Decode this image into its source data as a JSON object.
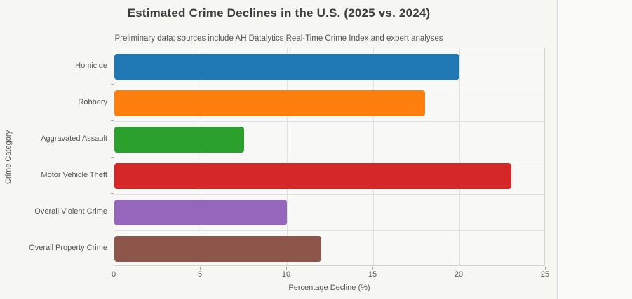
{
  "page": {
    "background": "#fbfbfa",
    "card_background": "#f6f6f3",
    "card_border_color": "#d9d9d9",
    "grid_color": "#e0e0dd",
    "text_color": "#555555",
    "title_color": "#3d3d3d"
  },
  "chart_data": {
    "type": "bar",
    "orientation": "horizontal",
    "title": "Estimated Crime Declines in the U.S. (2025 vs. 2024)",
    "subtitle": "Preliminary data; sources include AH Datalytics Real-Time Crime Index and expert analyses",
    "xlabel": "Percentage Decline (%)",
    "ylabel": "Crime Category",
    "categories": [
      "Homicide",
      "Robbery",
      "Aggravated Assault",
      "Motor Vehicle Theft",
      "Overall Violent Crime",
      "Overall Property Crime"
    ],
    "values": [
      20,
      18,
      7.5,
      23,
      10,
      12
    ],
    "bar_colors": [
      "#1f77b4",
      "#ff7f0e",
      "#2ca02c",
      "#d62728",
      "#9467bd",
      "#8c564b"
    ],
    "xlim": [
      0,
      25
    ],
    "xticks": [
      0,
      5,
      10,
      15,
      20,
      25
    ],
    "grid": true,
    "legend": false
  }
}
